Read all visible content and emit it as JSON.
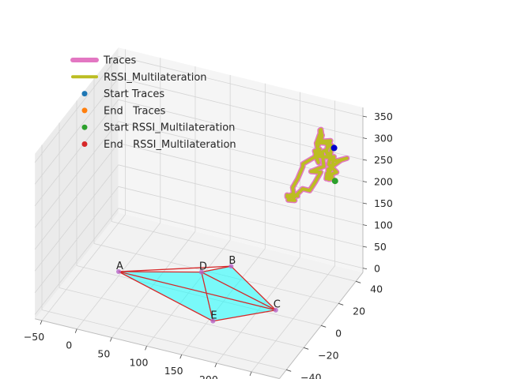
{
  "chart_data": {
    "type": "3d-line-scatter",
    "legend": {
      "placement": "top-left",
      "entries": [
        {
          "label": "Traces",
          "kind": "line",
          "color": "#e377c2"
        },
        {
          "label": "RSSI_Multilateration",
          "kind": "line",
          "color": "#bcbd22"
        },
        {
          "label": "Start Traces",
          "kind": "marker",
          "color": "#1f77b4"
        },
        {
          "label": "End   Traces",
          "kind": "marker",
          "color": "#ff7f0e"
        },
        {
          "label": "Start RSSI_Multilateration",
          "kind": "marker",
          "color": "#2ca02c"
        },
        {
          "label": "End   RSSI_Multilateration",
          "kind": "marker",
          "color": "#d62728"
        }
      ]
    },
    "axes": {
      "x": {
        "ticks": [
          -50,
          0,
          50,
          100,
          150,
          200,
          250
        ],
        "range": [
          -60,
          290
        ]
      },
      "y": {
        "ticks": [
          -40,
          -20,
          0,
          20,
          40
        ],
        "range": [
          -48,
          48
        ]
      },
      "z": {
        "ticks": [
          0,
          50,
          100,
          150,
          200,
          250,
          300,
          350
        ],
        "range": [
          -10,
          370
        ]
      }
    },
    "anchors": [
      {
        "name": "A",
        "x": 0,
        "y": 0,
        "z": 0
      },
      {
        "name": "B",
        "x": 130,
        "y": 25,
        "z": 0
      },
      {
        "name": "C",
        "x": 225,
        "y": 0,
        "z": 0
      },
      {
        "name": "D",
        "x": 100,
        "y": 15,
        "z": 0
      },
      {
        "name": "E",
        "x": 160,
        "y": -20,
        "z": 0
      }
    ],
    "polygon_edges": [
      [
        "A",
        "B"
      ],
      [
        "B",
        "C"
      ],
      [
        "C",
        "A"
      ],
      [
        "A",
        "D"
      ],
      [
        "D",
        "C"
      ],
      [
        "D",
        "E"
      ],
      [
        "E",
        "C"
      ],
      [
        "A",
        "E"
      ],
      [
        "B",
        "D"
      ]
    ],
    "polygon_fill": "#00ffff",
    "edge_color": "#d62728",
    "trace_center": {
      "x": 270,
      "y": 30,
      "z": 300
    },
    "start_traces": {
      "x": 265,
      "y": 35,
      "z": 300
    },
    "start_rssi": {
      "x": 285,
      "y": 20,
      "z": 270
    }
  }
}
